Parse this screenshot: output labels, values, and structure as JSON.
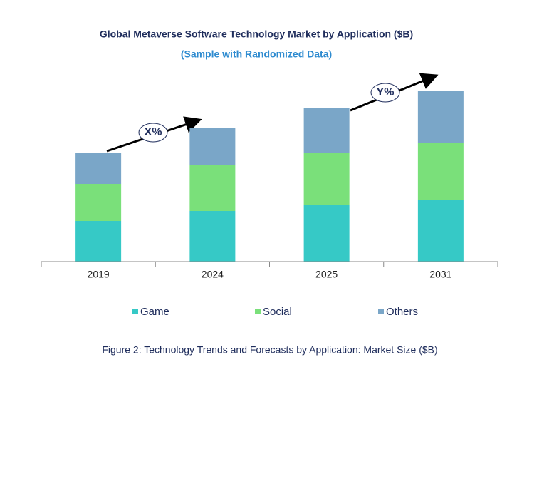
{
  "chart_data": {
    "type": "stacked-bar",
    "title": "Global Metaverse Software Technology Market by Application ($B)",
    "subtitle": "(Sample with Randomized Data)",
    "categories": [
      "2019",
      "2024",
      "2025",
      "2031"
    ],
    "series": [
      {
        "name": "Game",
        "color": "#36c9c6",
        "values": [
          57,
          71,
          80,
          86
        ]
      },
      {
        "name": "Social",
        "color": "#7ae07a",
        "values": [
          52,
          64,
          72,
          80
        ]
      },
      {
        "name": "Others",
        "color": "#7aa6c8",
        "values": [
          43,
          52,
          64,
          73
        ]
      }
    ],
    "ylim": [
      0,
      250
    ],
    "annotations": [
      "X%",
      "Y%"
    ],
    "caption": "Figure 2: Technology  Trends  and Forecasts by Application: Market Size ($B)"
  }
}
